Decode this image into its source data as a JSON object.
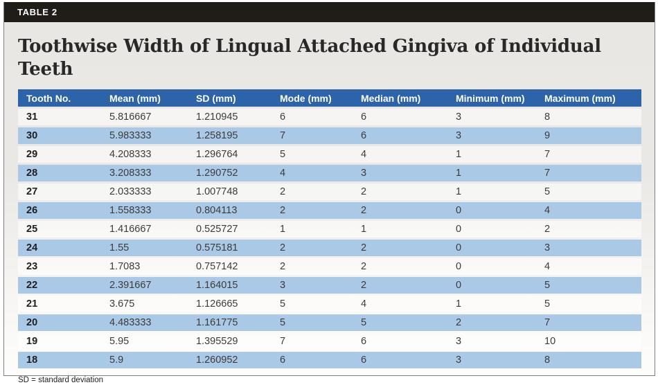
{
  "header": {
    "label": "TABLE 2",
    "title": "Toothwise Width of Lingual Attached Gingiva of Individual Teeth"
  },
  "footnote": "SD = standard deviation",
  "colors": {
    "label_bar_bg": "#201c18",
    "header_row_bg": "#2d63a9",
    "zebra_blue": "#aac9e7",
    "card_bg_top": "#e9e7e3",
    "card_bg_bottom": "#fdfdfc"
  },
  "chart_data": {
    "type": "table",
    "title": "Toothwise Width of Lingual Attached Gingiva of Individual Teeth",
    "columns": [
      "Tooth No.",
      "Mean (mm)",
      "SD (mm)",
      "Mode (mm)",
      "Median (mm)",
      "Minimum (mm)",
      "Maximum (mm)"
    ],
    "rows": [
      [
        "31",
        "5.816667",
        "1.210945",
        "6",
        "6",
        "3",
        "8"
      ],
      [
        "30",
        "5.983333",
        "1.258195",
        "7",
        "6",
        "3",
        "9"
      ],
      [
        "29",
        "4.208333",
        "1.296764",
        "5",
        "4",
        "1",
        "7"
      ],
      [
        "28",
        "3.208333",
        "1.290752",
        "4",
        "3",
        "1",
        "7"
      ],
      [
        "27",
        "2.033333",
        "1.007748",
        "2",
        "2",
        "1",
        "5"
      ],
      [
        "26",
        "1.558333",
        "0.804113",
        "2",
        "2",
        "0",
        "4"
      ],
      [
        "25",
        "1.416667",
        "0.525727",
        "1",
        "1",
        "0",
        "2"
      ],
      [
        "24",
        "1.55",
        "0.575181",
        "2",
        "2",
        "0",
        "3"
      ],
      [
        "23",
        "1.7083",
        "0.757142",
        "2",
        "2",
        "0",
        "4"
      ],
      [
        "22",
        "2.391667",
        "1.164015",
        "3",
        "2",
        "0",
        "5"
      ],
      [
        "21",
        "3.675",
        "1.126665",
        "5",
        "4",
        "1",
        "5"
      ],
      [
        "20",
        "4.483333",
        "1.161775",
        "5",
        "5",
        "2",
        "7"
      ],
      [
        "19",
        "5.95",
        "1.395529",
        "7",
        "6",
        "3",
        "10"
      ],
      [
        "18",
        "5.9",
        "1.260952",
        "6",
        "6",
        "3",
        "8"
      ]
    ]
  }
}
